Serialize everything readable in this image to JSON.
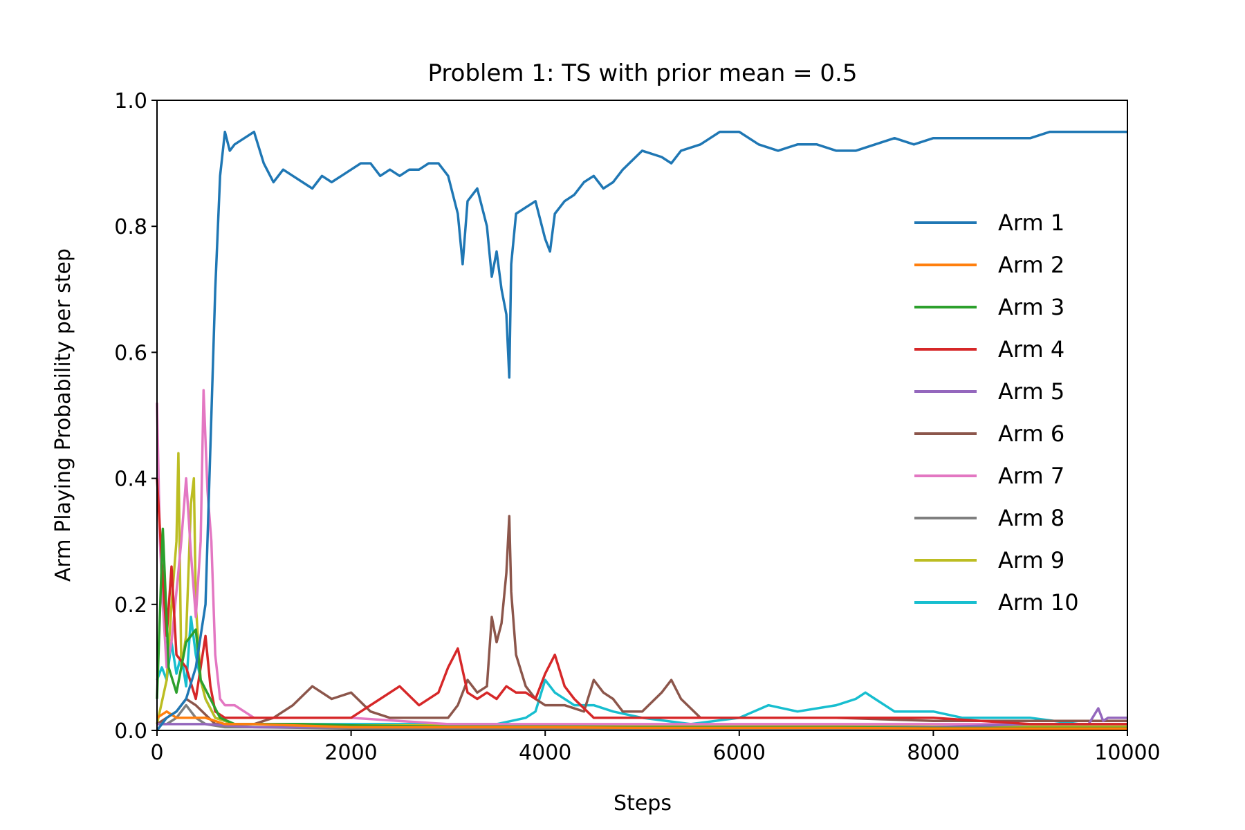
{
  "chart_data": {
    "type": "line",
    "title": "Problem 1: TS with prior mean = 0.5",
    "xlabel": "Steps",
    "ylabel": "Arm Playing Probability per step",
    "xlim": [
      0,
      10000
    ],
    "ylim": [
      0,
      1.0
    ],
    "xticks": [
      0,
      2000,
      4000,
      6000,
      8000,
      10000
    ],
    "xtick_labels": [
      "0",
      "2000",
      "4000",
      "6000",
      "8000",
      "10000"
    ],
    "yticks": [
      0,
      0.2,
      0.4,
      0.6,
      0.8,
      1.0
    ],
    "ytick_labels": [
      "0.0",
      "0.2",
      "0.4",
      "0.6",
      "0.8",
      "1.0"
    ],
    "grid": false,
    "legend_position": "center-right",
    "series": [
      {
        "name": "Arm 1",
        "color": "#1f77b4",
        "x": [
          0,
          100,
          200,
          300,
          400,
          500,
          550,
          600,
          650,
          700,
          750,
          800,
          900,
          1000,
          1100,
          1200,
          1300,
          1400,
          1500,
          1600,
          1700,
          1800,
          1900,
          2000,
          2100,
          2200,
          2300,
          2400,
          2500,
          2600,
          2700,
          2800,
          2900,
          3000,
          3100,
          3150,
          3200,
          3300,
          3400,
          3450,
          3500,
          3550,
          3600,
          3630,
          3650,
          3700,
          3800,
          3900,
          4000,
          4050,
          4100,
          4200,
          4300,
          4400,
          4500,
          4600,
          4700,
          4800,
          5000,
          5200,
          5300,
          5400,
          5600,
          5800,
          6000,
          6200,
          6400,
          6600,
          6800,
          7000,
          7200,
          7400,
          7600,
          7800,
          8000,
          8200,
          8400,
          8600,
          8800,
          9000,
          9200,
          9400,
          9600,
          9800,
          10000
        ],
        "y": [
          0.0,
          0.02,
          0.03,
          0.05,
          0.1,
          0.2,
          0.45,
          0.7,
          0.88,
          0.95,
          0.92,
          0.93,
          0.94,
          0.95,
          0.9,
          0.87,
          0.89,
          0.88,
          0.87,
          0.86,
          0.88,
          0.87,
          0.88,
          0.89,
          0.9,
          0.9,
          0.88,
          0.89,
          0.88,
          0.89,
          0.89,
          0.9,
          0.9,
          0.88,
          0.82,
          0.74,
          0.84,
          0.86,
          0.8,
          0.72,
          0.76,
          0.7,
          0.66,
          0.56,
          0.74,
          0.82,
          0.83,
          0.84,
          0.78,
          0.76,
          0.82,
          0.84,
          0.85,
          0.87,
          0.88,
          0.86,
          0.87,
          0.89,
          0.92,
          0.91,
          0.9,
          0.92,
          0.93,
          0.95,
          0.95,
          0.93,
          0.92,
          0.93,
          0.93,
          0.92,
          0.92,
          0.93,
          0.94,
          0.93,
          0.94,
          0.94,
          0.94,
          0.94,
          0.94,
          0.94,
          0.95,
          0.95,
          0.95,
          0.95,
          0.95
        ]
      },
      {
        "name": "Arm 2",
        "color": "#ff7f0e",
        "x": [
          0,
          100,
          200,
          300,
          500,
          700,
          1000,
          2000,
          3000,
          4000,
          5000,
          6000,
          7000,
          8000,
          9000,
          10000
        ],
        "y": [
          0.02,
          0.03,
          0.02,
          0.02,
          0.02,
          0.01,
          0.01,
          0.005,
          0.005,
          0.005,
          0.004,
          0.004,
          0.004,
          0.003,
          0.003,
          0.003
        ]
      },
      {
        "name": "Arm 3",
        "color": "#2ca02c",
        "x": [
          0,
          60,
          120,
          200,
          300,
          400,
          450,
          550,
          650,
          800,
          1000,
          1500,
          2000,
          3000,
          4000,
          5000,
          6000,
          7000,
          8000,
          9000,
          10000
        ],
        "y": [
          0.05,
          0.32,
          0.1,
          0.06,
          0.14,
          0.16,
          0.08,
          0.05,
          0.02,
          0.01,
          0.01,
          0.01,
          0.008,
          0.006,
          0.006,
          0.005,
          0.005,
          0.005,
          0.004,
          0.004,
          0.004
        ]
      },
      {
        "name": "Arm 4",
        "color": "#d62728",
        "x": [
          0,
          60,
          100,
          150,
          200,
          300,
          400,
          500,
          550,
          600,
          700,
          1000,
          1500,
          2000,
          2300,
          2500,
          2700,
          2900,
          3000,
          3100,
          3200,
          3300,
          3400,
          3500,
          3600,
          3700,
          3800,
          3900,
          4000,
          4100,
          4200,
          4300,
          4500,
          5000,
          6000,
          7000,
          8000,
          9000,
          10000
        ],
        "y": [
          0.4,
          0.24,
          0.15,
          0.26,
          0.12,
          0.1,
          0.05,
          0.15,
          0.07,
          0.03,
          0.02,
          0.02,
          0.02,
          0.02,
          0.05,
          0.07,
          0.04,
          0.06,
          0.1,
          0.13,
          0.06,
          0.05,
          0.06,
          0.05,
          0.07,
          0.06,
          0.06,
          0.05,
          0.09,
          0.12,
          0.07,
          0.05,
          0.02,
          0.02,
          0.02,
          0.02,
          0.02,
          0.01,
          0.01
        ]
      },
      {
        "name": "Arm 5",
        "color": "#9467bd",
        "x": [
          0,
          200,
          500,
          1000,
          2000,
          3000,
          4000,
          5000,
          6000,
          7000,
          8000,
          9000,
          9600,
          9700,
          9750,
          9800,
          10000
        ],
        "y": [
          0.01,
          0.01,
          0.01,
          0.005,
          0.005,
          0.005,
          0.005,
          0.005,
          0.005,
          0.005,
          0.005,
          0.01,
          0.01,
          0.035,
          0.015,
          0.02,
          0.02
        ]
      },
      {
        "name": "Arm 6",
        "color": "#8c564b",
        "x": [
          0,
          100,
          200,
          300,
          400,
          600,
          800,
          1000,
          1200,
          1400,
          1600,
          1800,
          2000,
          2200,
          2400,
          2600,
          2800,
          3000,
          3100,
          3200,
          3300,
          3400,
          3450,
          3500,
          3550,
          3600,
          3630,
          3650,
          3700,
          3800,
          3900,
          4000,
          4200,
          4400,
          4500,
          4600,
          4700,
          4800,
          5000,
          5200,
          5300,
          5400,
          5600,
          6000,
          7000,
          8000,
          9000,
          10000
        ],
        "y": [
          0.01,
          0.02,
          0.03,
          0.05,
          0.04,
          0.01,
          0.01,
          0.01,
          0.02,
          0.04,
          0.07,
          0.05,
          0.06,
          0.03,
          0.02,
          0.02,
          0.02,
          0.02,
          0.04,
          0.08,
          0.06,
          0.07,
          0.18,
          0.14,
          0.17,
          0.25,
          0.34,
          0.22,
          0.12,
          0.07,
          0.05,
          0.04,
          0.04,
          0.03,
          0.08,
          0.06,
          0.05,
          0.03,
          0.03,
          0.06,
          0.08,
          0.05,
          0.02,
          0.02,
          0.02,
          0.015,
          0.015,
          0.015
        ]
      },
      {
        "name": "Arm 7",
        "color": "#e377c2",
        "x": [
          0,
          30,
          60,
          100,
          150,
          200,
          250,
          300,
          350,
          400,
          450,
          480,
          520,
          560,
          600,
          650,
          700,
          800,
          1000,
          2000,
          3000,
          4000,
          5000,
          6000,
          7000,
          8000,
          9000,
          10000
        ],
        "y": [
          0.52,
          0.3,
          0.2,
          0.1,
          0.14,
          0.22,
          0.3,
          0.4,
          0.28,
          0.18,
          0.3,
          0.54,
          0.38,
          0.3,
          0.12,
          0.05,
          0.04,
          0.04,
          0.02,
          0.02,
          0.01,
          0.01,
          0.01,
          0.01,
          0.01,
          0.01,
          0.01,
          0.01
        ]
      },
      {
        "name": "Arm 8",
        "color": "#7f7f7f",
        "x": [
          0,
          100,
          200,
          300,
          400,
          500,
          700,
          1000,
          2000,
          4000,
          6000,
          8000,
          10000
        ],
        "y": [
          0.01,
          0.01,
          0.02,
          0.04,
          0.02,
          0.01,
          0.005,
          0.005,
          0.003,
          0.003,
          0.003,
          0.003,
          0.003
        ]
      },
      {
        "name": "Arm 9",
        "color": "#bcbd22",
        "x": [
          0,
          100,
          150,
          200,
          220,
          250,
          300,
          350,
          380,
          400,
          450,
          500,
          600,
          800,
          1000,
          2000,
          3000,
          4000,
          5000,
          6000,
          7000,
          8000,
          9000,
          10000
        ],
        "y": [
          0.01,
          0.08,
          0.2,
          0.3,
          0.44,
          0.1,
          0.15,
          0.36,
          0.4,
          0.2,
          0.08,
          0.05,
          0.02,
          0.01,
          0.01,
          0.008,
          0.008,
          0.008,
          0.007,
          0.007,
          0.007,
          0.006,
          0.006,
          0.006
        ]
      },
      {
        "name": "Arm 10",
        "color": "#17becf",
        "x": [
          0,
          50,
          100,
          150,
          200,
          250,
          300,
          350,
          400,
          450,
          500,
          600,
          800,
          1000,
          2000,
          3000,
          3500,
          3800,
          3900,
          4000,
          4050,
          4100,
          4200,
          4300,
          4500,
          4700,
          5000,
          5500,
          6000,
          6300,
          6600,
          7000,
          7200,
          7300,
          7400,
          7600,
          7800,
          8000,
          8300,
          8600,
          9000,
          9500,
          10000
        ],
        "y": [
          0.08,
          0.1,
          0.08,
          0.14,
          0.09,
          0.12,
          0.07,
          0.18,
          0.12,
          0.08,
          0.05,
          0.02,
          0.01,
          0.01,
          0.01,
          0.01,
          0.01,
          0.02,
          0.03,
          0.08,
          0.07,
          0.06,
          0.05,
          0.04,
          0.04,
          0.03,
          0.02,
          0.01,
          0.02,
          0.04,
          0.03,
          0.04,
          0.05,
          0.06,
          0.05,
          0.03,
          0.03,
          0.03,
          0.02,
          0.02,
          0.02,
          0.01,
          0.01
        ]
      }
    ]
  }
}
